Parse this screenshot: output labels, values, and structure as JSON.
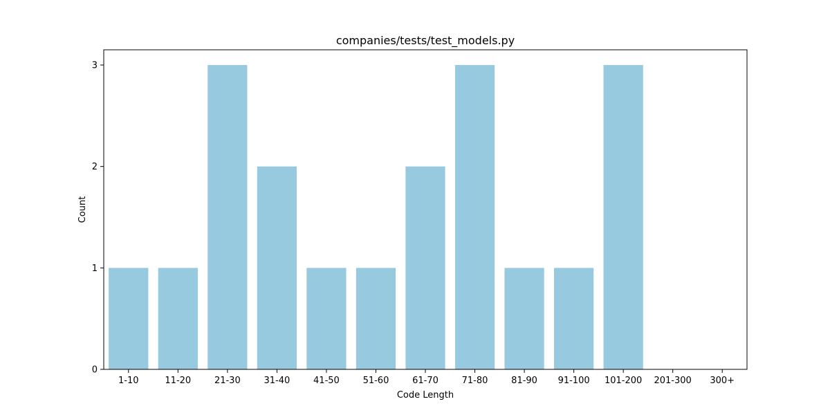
{
  "chart_data": {
    "type": "bar",
    "title": "companies/tests/test_models.py",
    "xlabel": "Code Length",
    "ylabel": "Count",
    "categories": [
      "1-10",
      "11-20",
      "21-30",
      "31-40",
      "41-50",
      "51-60",
      "61-70",
      "71-80",
      "81-90",
      "91-100",
      "101-200",
      "201-300",
      "300+"
    ],
    "values": [
      1,
      1,
      3,
      2,
      1,
      1,
      2,
      3,
      1,
      1,
      3,
      0,
      0
    ],
    "yticks": [
      "0",
      "1",
      "2",
      "3"
    ],
    "ylim": [
      0,
      3.15
    ],
    "bar_color": "#97c9df",
    "grid": false,
    "legend": "none"
  }
}
